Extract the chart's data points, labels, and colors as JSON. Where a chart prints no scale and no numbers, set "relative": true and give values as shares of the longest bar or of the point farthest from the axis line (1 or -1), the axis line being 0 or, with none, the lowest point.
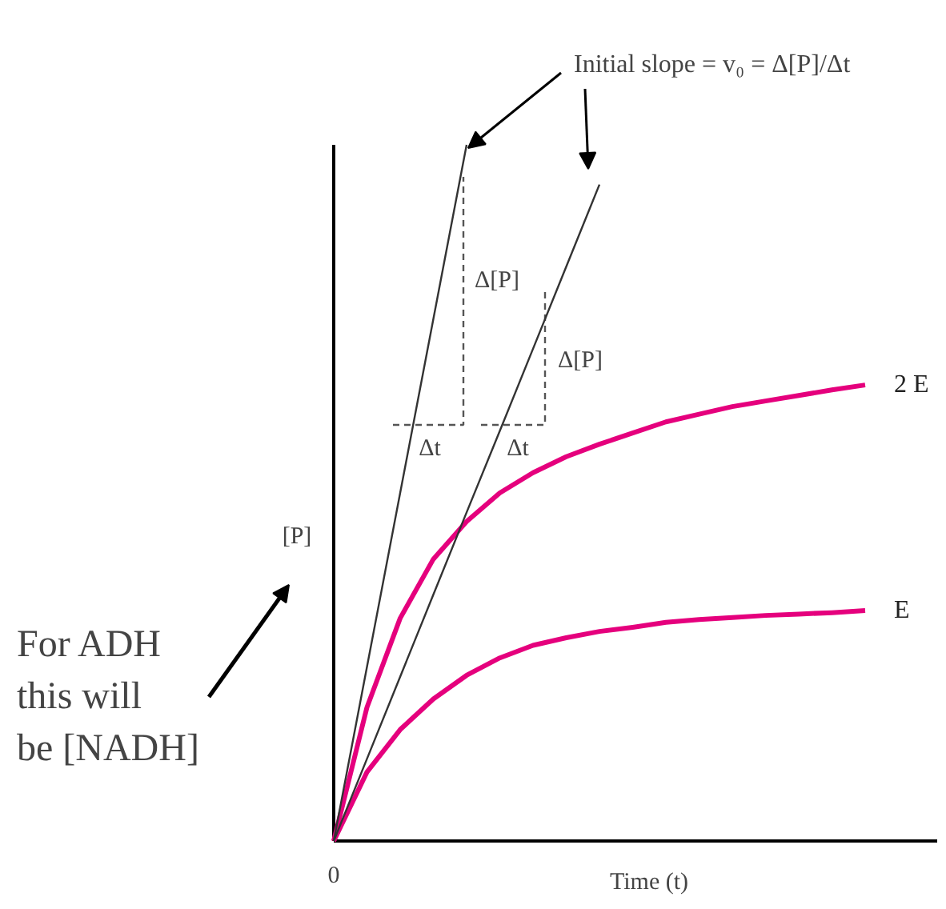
{
  "chart_data": {
    "type": "line",
    "relative": true,
    "xlabel": "Time (t)",
    "ylabel": "[P]",
    "categories": [
      null,
      null,
      null,
      null,
      null,
      null,
      null,
      null,
      null,
      null,
      null,
      null,
      null,
      null,
      null,
      null,
      null
    ],
    "series": [
      {
        "name": "2 E",
        "color": "#e5007d",
        "values": [
          0,
          0.192,
          0.32,
          0.405,
          0.459,
          0.5,
          0.529,
          0.552,
          0.57,
          0.586,
          0.602,
          0.613,
          0.624,
          0.632,
          0.64,
          0.648,
          0.655
        ]
      },
      {
        "name": "E",
        "color": "#e5007d",
        "values": [
          0,
          0.099,
          0.16,
          0.204,
          0.238,
          0.263,
          0.281,
          0.292,
          0.301,
          0.307,
          0.314,
          0.318,
          0.321,
          0.324,
          0.326,
          0.328,
          0.331
        ]
      },
      {
        "color": "#333333",
        "values": [
          0,
          0.25,
          0.5,
          0.75,
          1,
          null,
          null,
          null,
          null,
          null,
          null,
          null,
          null,
          null,
          null,
          null,
          null
        ]
      },
      {
        "color": "#333333",
        "values": [
          0,
          0.118,
          0.236,
          0.354,
          0.472,
          0.589,
          0.707,
          0.825,
          0.943,
          null,
          null,
          null,
          null,
          null,
          null,
          null,
          null
        ]
      }
    ],
    "annotations": [
      "Δt",
      "Δ[P]",
      "Δt",
      "Δ[P]",
      "Initial slope = v₀ = Δ[P]/Δt",
      "For ADH\nthis will\nbe [NADH]",
      "0"
    ]
  }
}
